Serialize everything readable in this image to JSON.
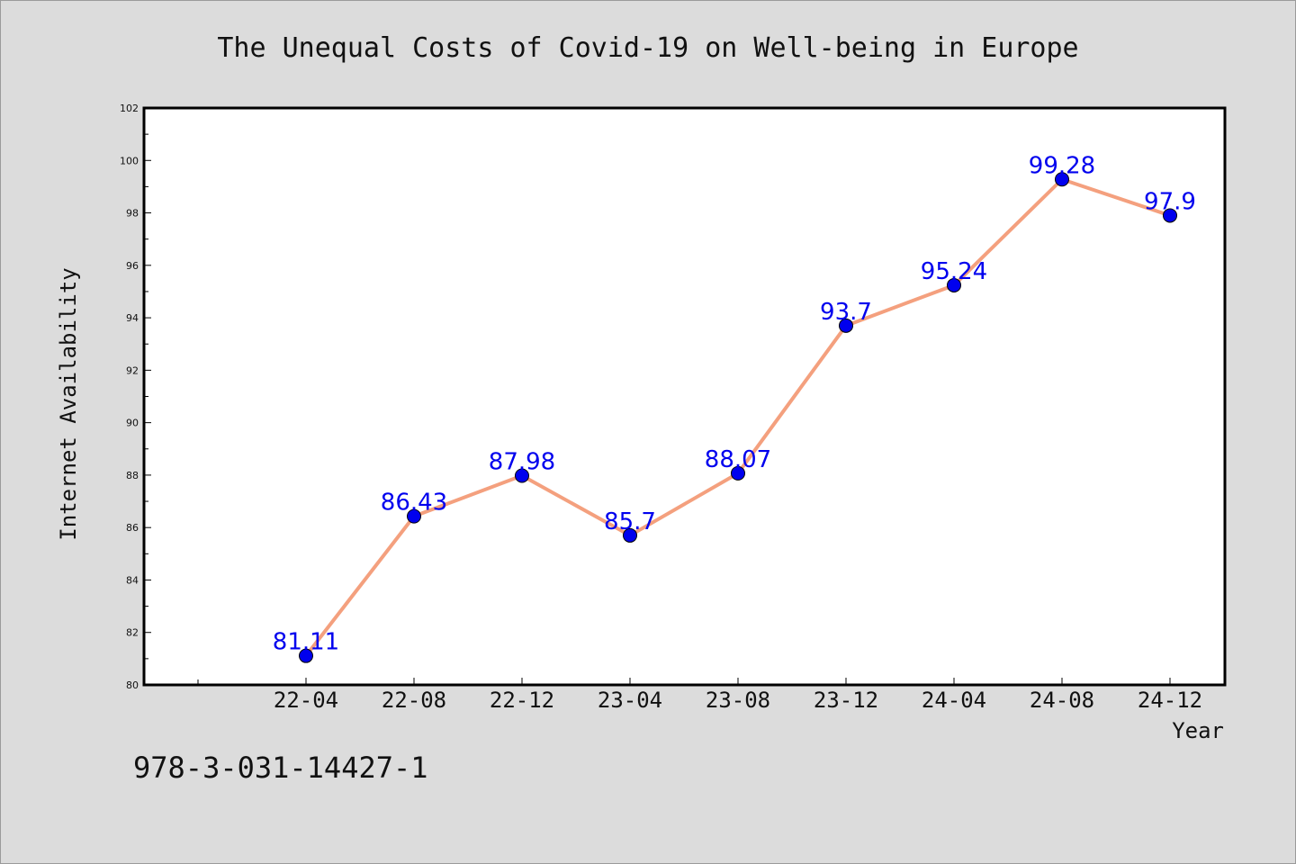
{
  "chart_data": {
    "type": "line",
    "title": "The Unequal Costs of Covid-19 on Well-being in Europe",
    "xlabel": "Year",
    "ylabel": "Internet Availability",
    "ylim": [
      80,
      102
    ],
    "yticks": [
      "80",
      "82",
      "84",
      "86",
      "88",
      "90",
      "92",
      "94",
      "96",
      "98",
      "100",
      "102"
    ],
    "categories": [
      "22-04",
      "22-08",
      "22-12",
      "23-04",
      "23-08",
      "23-12",
      "24-04",
      "24-08",
      "24-12"
    ],
    "series": [
      {
        "values": [
          81.11,
          86.43,
          87.98,
          85.7,
          88.07,
          93.7,
          95.24,
          99.28,
          97.9
        ],
        "labels": [
          "81.11",
          "86.43",
          "87.98",
          "85.7",
          "88.07",
          "93.7",
          "95.24",
          "99.28",
          "97.9"
        ],
        "line_color": "#f4a07e",
        "marker_color": "#0000ee",
        "label_color": "#0000ee"
      }
    ],
    "grid": false,
    "legend": "none"
  },
  "footer_text": "978-3-031-14427-1"
}
